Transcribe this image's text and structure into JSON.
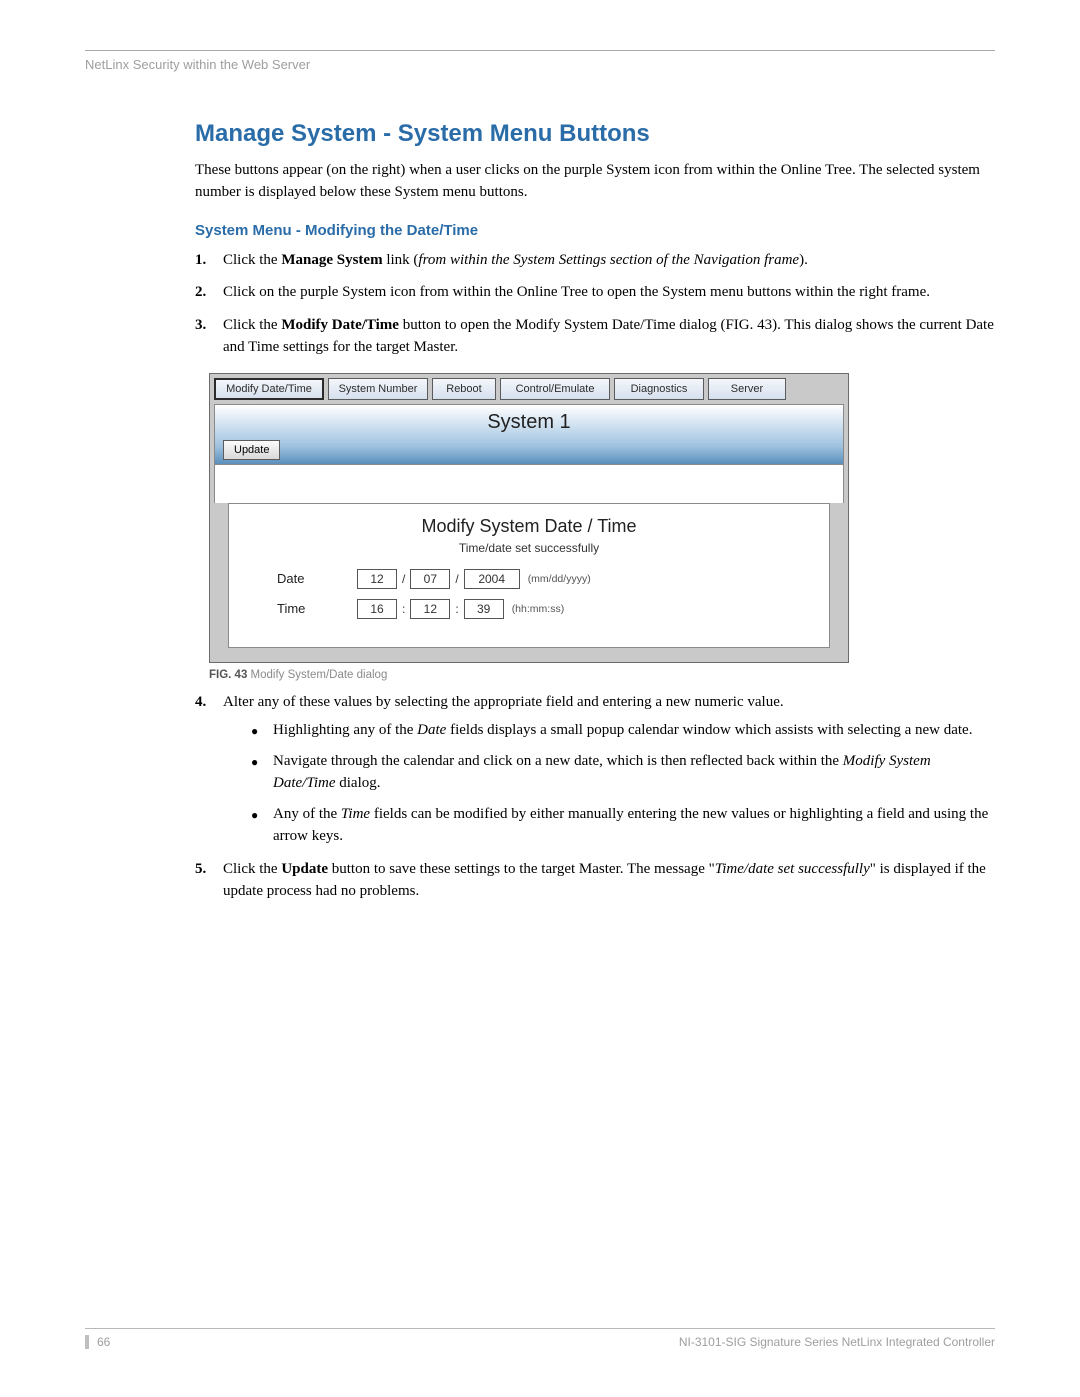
{
  "header": {
    "text": "NetLinx Security within the Web Server"
  },
  "title": "Manage System - System Menu Buttons",
  "intro": "These buttons appear (on the right) when a user clicks on the purple System icon from within the Online Tree. The selected system number is displayed below these System menu buttons.",
  "subsection": "System Menu - Modifying the Date/Time",
  "steps": {
    "s1a": "Click the ",
    "s1b": "Manage System",
    "s1c": " link (",
    "s1d": "from within the System Settings section of the Navigation frame",
    "s1e": ").",
    "s2": "Click on the purple System icon from within the Online Tree to open the System menu buttons within the right frame.",
    "s3a": "Click the ",
    "s3b": "Modify Date/Time",
    "s3c": " button to open the Modify System Date/Time dialog (FIG. 43). This dialog shows the current Date and Time settings for the target Master.",
    "s4": "Alter any of these values by selecting the appropriate field and entering a new numeric value.",
    "s4_b1a": "Highlighting any of the ",
    "s4_b1b": "Date",
    "s4_b1c": " fields displays a small popup calendar window which assists with selecting a new date.",
    "s4_b2a": "Navigate through the calendar and click on a new date, which is then reflected back within the ",
    "s4_b2b": "Modify System Date/Time",
    "s4_b2c": " dialog.",
    "s4_b3a": "Any of the ",
    "s4_b3b": "Time",
    "s4_b3c": " fields can be modified by either manually entering the new values or highlighting a field and using the arrow keys.",
    "s5a": "Click the ",
    "s5b": "Update",
    "s5c": " button to save these settings to the target Master. The message \"",
    "s5d": "Time/date set successfully",
    "s5e": "\" is displayed if the update process had no problems."
  },
  "figure": {
    "tabs": {
      "t1": "Modify Date/Time",
      "t2": "System Number",
      "t3": "Reboot",
      "t4": "Control/Emulate",
      "t5": "Diagnostics",
      "t6": "Server"
    },
    "system_title": "System 1",
    "update_label": "Update",
    "panel_title": "Modify System Date / Time",
    "panel_sub": "Time/date set successfully",
    "date_label": "Date",
    "time_label": "Time",
    "date": {
      "mm": "12",
      "dd": "07",
      "yyyy": "2004"
    },
    "time": {
      "hh": "16",
      "mm": "12",
      "ss": "39"
    },
    "date_hint": "(mm/dd/yyyy)",
    "time_hint": "(hh:mm:ss)",
    "date_sep": "/",
    "time_sep": ":",
    "caption_bold": "FIG. 43",
    "caption_rest": "  Modify System/Date dialog"
  },
  "footer": {
    "page": "66",
    "right": "NI-3101-SIG Signature Series NetLinx Integrated Controller"
  },
  "colors": {
    "heading": "#2a6ca8",
    "muted": "#9e9e9e",
    "fig_bg": "#c9c9c9",
    "grad_top": "#ffffff",
    "grad_bot": "#5a8fbc"
  }
}
